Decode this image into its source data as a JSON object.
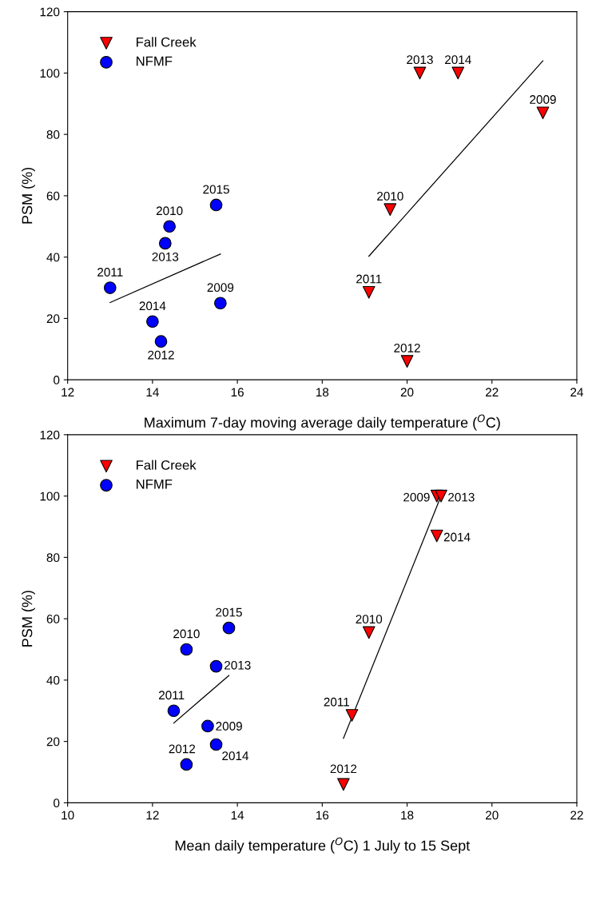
{
  "chart_data": [
    {
      "type": "scatter",
      "xlabel": "Maximum 7-day moving average daily temperature ($^{O}$C)",
      "ylabel": "PSM (%)",
      "xlim": [
        12,
        24
      ],
      "xticks": [
        12,
        14,
        16,
        18,
        20,
        22,
        24
      ],
      "ylim": [
        0,
        120
      ],
      "yticks": [
        0,
        20,
        40,
        60,
        80,
        100,
        120
      ],
      "grid": false,
      "legend": "top left",
      "series": [
        {
          "name": "Fall Creek",
          "color": "#ff0000",
          "marker": "triangle",
          "x": [
            20.3,
            21.2,
            23.2,
            19.6,
            19.1,
            20.0
          ],
          "values": [
            100,
            100,
            87,
            55.5,
            28.5,
            6
          ]
        },
        {
          "name": "NFMF",
          "color": "#0000ff",
          "marker": "circle",
          "x": [
            13.0,
            14.4,
            14.3,
            15.5,
            15.6,
            14.0,
            14.2
          ],
          "values": [
            30,
            50,
            44.5,
            57,
            25,
            19,
            12.5
          ]
        },
        {
          "type": "line",
          "color": "#000000",
          "marker": "none",
          "x": [
            13.0,
            15.6
          ],
          "values": [
            25.2,
            41
          ]
        },
        {
          "type": "line",
          "color": "#000000",
          "marker": "none",
          "x": [
            19.1,
            23.2
          ],
          "values": [
            40.3,
            104
          ]
        }
      ],
      "annotations": [
        {
          "text": "2013",
          "x": 20.3,
          "y": 100
        },
        {
          "text": "2014",
          "x": 21.2,
          "y": 100
        },
        {
          "text": "2009",
          "x": 23.2,
          "y": 87
        },
        {
          "text": "2010",
          "x": 19.6,
          "y": 55.5
        },
        {
          "text": "2011",
          "x": 19.1,
          "y": 28.5
        },
        {
          "text": "2012",
          "x": 20.0,
          "y": 6
        },
        {
          "text": "2011",
          "x": 13.0,
          "y": 30
        },
        {
          "text": "2010",
          "x": 14.4,
          "y": 50
        },
        {
          "text": "2013",
          "x": 14.3,
          "y": 44.5
        },
        {
          "text": "2015",
          "x": 15.5,
          "y": 57
        },
        {
          "text": "2009",
          "x": 15.6,
          "y": 25
        },
        {
          "text": "2014",
          "x": 14.0,
          "y": 19
        },
        {
          "text": "2012",
          "x": 14.2,
          "y": 12.5
        }
      ]
    },
    {
      "type": "scatter",
      "xlabel": "Mean daily temperature ($^{O}$C) 1 July to 15 Sept",
      "ylabel": "PSM (%)",
      "xlim": [
        10,
        22
      ],
      "xticks": [
        10,
        12,
        14,
        16,
        18,
        20,
        22
      ],
      "ylim": [
        0,
        120
      ],
      "yticks": [
        0,
        20,
        40,
        60,
        80,
        100,
        120
      ],
      "grid": false,
      "legend": "top left",
      "series": [
        {
          "name": "Fall Creek",
          "color": "#ff0000",
          "marker": "triangle",
          "x": [
            18.7,
            18.8,
            18.7,
            17.1,
            16.7,
            16.5
          ],
          "values": [
            100,
            100,
            87,
            55.5,
            28.5,
            6
          ]
        },
        {
          "name": "NFMF",
          "color": "#0000ff",
          "marker": "circle",
          "x": [
            13.8,
            12.8,
            13.5,
            12.5,
            13.3,
            13.5,
            12.8
          ],
          "values": [
            57,
            50,
            44.5,
            30,
            25,
            19,
            12.5
          ]
        },
        {
          "type": "line",
          "color": "#000000",
          "marker": "none",
          "x": [
            12.5,
            13.8
          ],
          "values": [
            26,
            41.5
          ]
        },
        {
          "type": "line",
          "color": "#000000",
          "marker": "none",
          "x": [
            16.5,
            18.8
          ],
          "values": [
            21,
            100
          ]
        }
      ],
      "annotations": [
        {
          "text": "2009",
          "x": 18.7,
          "y": 100
        },
        {
          "text": "2013",
          "x": 18.8,
          "y": 100
        },
        {
          "text": "2014",
          "x": 18.7,
          "y": 87
        },
        {
          "text": "2010",
          "x": 17.1,
          "y": 55.5
        },
        {
          "text": "2011",
          "x": 16.7,
          "y": 28.5
        },
        {
          "text": "2012",
          "x": 16.5,
          "y": 6
        },
        {
          "text": "2015",
          "x": 13.8,
          "y": 57
        },
        {
          "text": "2010",
          "x": 12.8,
          "y": 50
        },
        {
          "text": "2013",
          "x": 13.5,
          "y": 44.5
        },
        {
          "text": "2011",
          "x": 12.5,
          "y": 30
        },
        {
          "text": "2009",
          "x": 13.3,
          "y": 25
        },
        {
          "text": "2014",
          "x": 13.5,
          "y": 19
        },
        {
          "text": "2012",
          "x": 12.8,
          "y": 12.5
        }
      ]
    }
  ]
}
